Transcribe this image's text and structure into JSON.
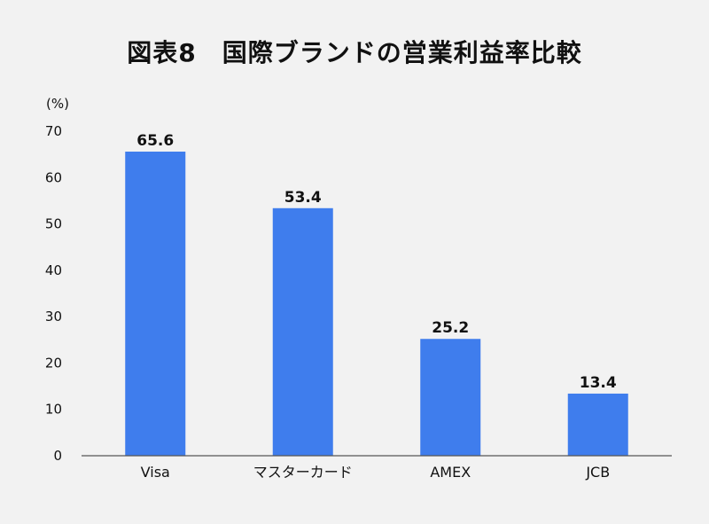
{
  "chart_data": {
    "type": "bar",
    "title": "図表8　国際ブランドの営業利益率比較",
    "ylabel": "(%)",
    "xlabel": "",
    "categories": [
      "Visa",
      "マスターカード",
      "AMEX",
      "JCB"
    ],
    "values": [
      65.6,
      53.4,
      25.2,
      13.4
    ],
    "data_labels": [
      "65.6",
      "53.4",
      "25.2",
      "13.4"
    ],
    "ylim": [
      0,
      70
    ],
    "yticks": [
      0,
      10,
      20,
      30,
      40,
      50,
      60,
      70
    ],
    "grid": false,
    "bar_color": "#3f7ded"
  }
}
